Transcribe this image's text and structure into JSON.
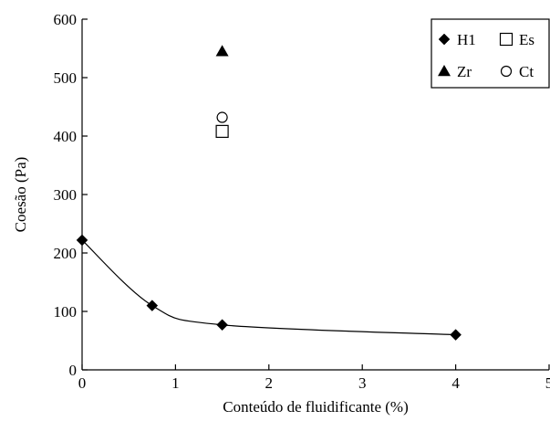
{
  "chart_data": {
    "type": "scatter",
    "xlabel": "Conteúdo de fluidificante (%)",
    "ylabel": "Coesão (Pa)",
    "xlim": [
      0,
      5
    ],
    "ylim": [
      0,
      600
    ],
    "x_ticks": [
      "0",
      "1",
      "2",
      "3",
      "4",
      "5"
    ],
    "y_ticks": [
      "0",
      "100",
      "200",
      "300",
      "400",
      "500",
      "600"
    ],
    "grid": false,
    "legend_position": "top-right",
    "series": [
      {
        "name": "H1",
        "marker": "diamond-filled",
        "x": [
          0,
          0.75,
          1.5,
          4
        ],
        "y": [
          222,
          110,
          77,
          60
        ],
        "fit_curve": true
      },
      {
        "name": "Es",
        "marker": "square-open",
        "x": [
          1.5
        ],
        "y": [
          408
        ]
      },
      {
        "name": "Zr",
        "marker": "triangle-filled",
        "x": [
          1.5
        ],
        "y": [
          545
        ]
      },
      {
        "name": "Ct",
        "marker": "circle-open",
        "x": [
          1.5
        ],
        "y": [
          432
        ]
      }
    ]
  }
}
